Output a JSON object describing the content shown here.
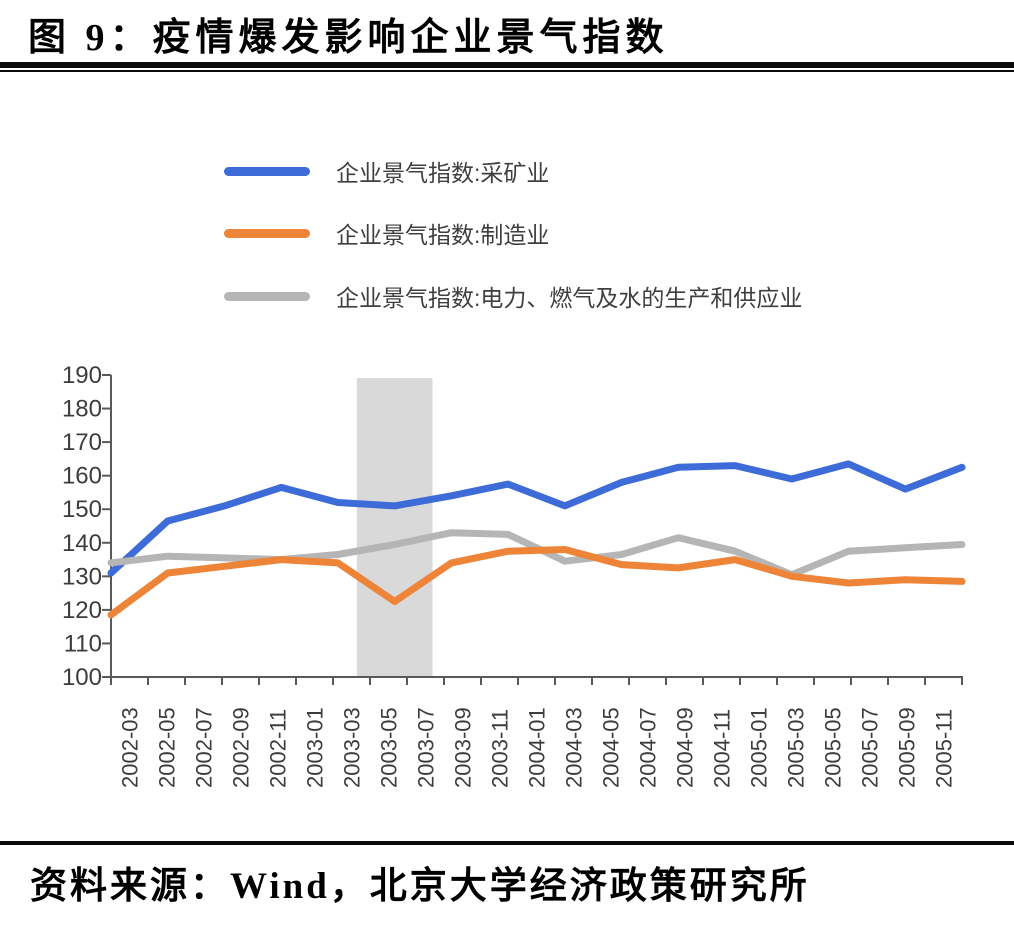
{
  "figure": {
    "title": "图 9：疫情爆发影响企业景气指数",
    "source": "资料来源：Wind，北京大学经济政策研究所"
  },
  "chart_data": {
    "type": "line",
    "title": "",
    "xlabel": "",
    "ylabel": "",
    "ylim": [
      100,
      190
    ],
    "ytick_step": 10,
    "y_tick_labels": [
      "100",
      "110",
      "120",
      "130",
      "140",
      "150",
      "160",
      "170",
      "180",
      "190"
    ],
    "x_tick_labels": [
      "2002-03",
      "2002-05",
      "2002-07",
      "2002-09",
      "2002-11",
      "2003-01",
      "2003-03",
      "2003-05",
      "2003-07",
      "2003-09",
      "2003-11",
      "2004-01",
      "2004-03",
      "2004-05",
      "2004-07",
      "2004-09",
      "2004-11",
      "2005-01",
      "2005-03",
      "2005-05",
      "2005-07",
      "2005-09",
      "2005-11"
    ],
    "x_points": [
      "2002-03",
      "2002-06",
      "2002-09",
      "2002-12",
      "2003-03",
      "2003-06",
      "2003-09",
      "2003-12",
      "2004-03",
      "2004-06",
      "2004-09",
      "2004-12",
      "2005-03",
      "2005-06",
      "2005-09",
      "2005-12"
    ],
    "series": [
      {
        "name": "企业景气指数:采矿业",
        "color": "#3d6cd8",
        "values": [
          131,
          146.5,
          151,
          156.5,
          152,
          151,
          154,
          157.5,
          151,
          158,
          162.5,
          163,
          159,
          163.5,
          156,
          162.5
        ]
      },
      {
        "name": "企业景气指数:制造业",
        "color": "#ee8438",
        "values": [
          118.5,
          131,
          133,
          135,
          134,
          122.5,
          134,
          137.5,
          138,
          133.5,
          132.5,
          135,
          130,
          128,
          129,
          128.5
        ]
      },
      {
        "name": "企业景气指数:电力、燃气及水的生产和供应业",
        "color": "#b5b5b5",
        "values": [
          134,
          136,
          135.5,
          135,
          136.5,
          139.5,
          143,
          142.5,
          134.5,
          136.5,
          141.5,
          137.5,
          130.5,
          137.5,
          138.5,
          139.5
        ]
      }
    ],
    "highlight_band": {
      "from": "2003-04",
      "to": "2003-08",
      "color": "#d9d9d9"
    },
    "legend_position": "top-left-stacked",
    "grid": "none",
    "axis_color": "#595959",
    "tick_label_color": "#3d3d3d"
  }
}
